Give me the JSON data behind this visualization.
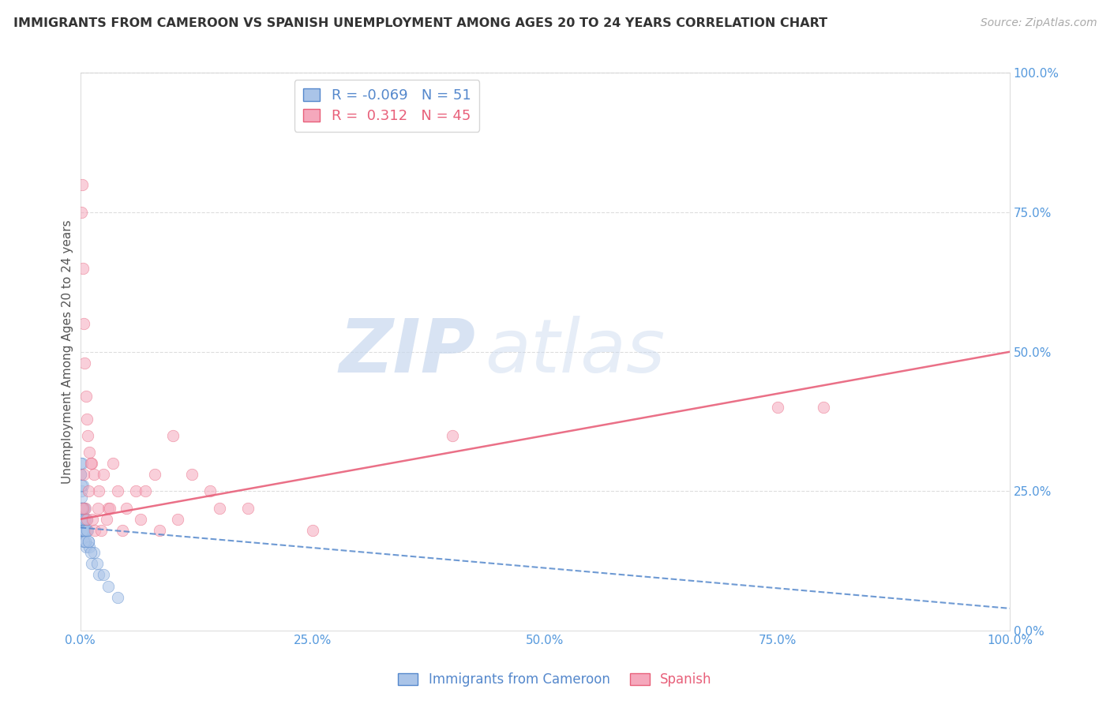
{
  "title": "IMMIGRANTS FROM CAMEROON VS SPANISH UNEMPLOYMENT AMONG AGES 20 TO 24 YEARS CORRELATION CHART",
  "source": "Source: ZipAtlas.com",
  "ylabel": "Unemployment Among Ages 20 to 24 years",
  "legend_labels": [
    "Immigrants from Cameroon",
    "Spanish"
  ],
  "legend_r": [
    -0.069,
    0.312
  ],
  "legend_n": [
    51,
    45
  ],
  "blue_color": "#aac4e8",
  "pink_color": "#f5a8bc",
  "trend_blue_color": "#5588cc",
  "trend_pink_color": "#e8607a",
  "axis_label_color": "#5599dd",
  "watermark_zip": "ZIP",
  "watermark_atlas": "atlas",
  "blue_x": [
    0.05,
    0.08,
    0.1,
    0.12,
    0.15,
    0.18,
    0.2,
    0.22,
    0.25,
    0.28,
    0.3,
    0.32,
    0.35,
    0.38,
    0.4,
    0.42,
    0.45,
    0.48,
    0.5,
    0.55,
    0.6,
    0.65,
    0.7,
    0.8,
    0.9,
    1.0,
    1.2,
    1.5,
    2.0,
    3.0,
    0.06,
    0.07,
    0.09,
    0.11,
    0.13,
    0.16,
    0.19,
    0.23,
    0.26,
    0.33,
    0.37,
    0.44,
    0.52,
    0.58,
    0.75,
    0.85,
    1.1,
    1.8,
    2.5,
    4.0,
    0.14
  ],
  "blue_y": [
    28,
    20,
    18,
    22,
    25,
    30,
    18,
    22,
    20,
    26,
    18,
    20,
    22,
    18,
    16,
    20,
    18,
    22,
    20,
    18,
    15,
    18,
    20,
    18,
    16,
    15,
    12,
    14,
    10,
    8,
    30,
    28,
    26,
    24,
    22,
    20,
    18,
    22,
    20,
    18,
    16,
    18,
    20,
    16,
    18,
    16,
    14,
    12,
    10,
    6,
    22
  ],
  "pink_x": [
    0.1,
    0.2,
    0.3,
    0.4,
    0.5,
    0.6,
    0.7,
    0.8,
    1.0,
    1.2,
    1.5,
    2.0,
    2.5,
    3.0,
    3.5,
    4.0,
    5.0,
    6.0,
    7.0,
    8.0,
    10.0,
    12.0,
    15.0,
    0.35,
    0.55,
    0.75,
    0.9,
    1.1,
    1.3,
    1.6,
    1.9,
    2.2,
    2.8,
    3.2,
    4.5,
    6.5,
    8.5,
    10.5,
    14.0,
    18.0,
    25.0,
    40.0,
    75.0,
    80.0,
    0.25
  ],
  "pink_y": [
    75,
    80,
    65,
    55,
    48,
    42,
    38,
    35,
    32,
    30,
    28,
    25,
    28,
    22,
    30,
    25,
    22,
    25,
    25,
    28,
    35,
    28,
    22,
    28,
    22,
    20,
    25,
    30,
    20,
    18,
    22,
    18,
    20,
    22,
    18,
    20,
    18,
    20,
    25,
    22,
    18,
    35,
    40,
    40,
    22
  ],
  "xlim": [
    0,
    100
  ],
  "ylim": [
    0,
    100
  ],
  "x_ticks": [
    0,
    25,
    50,
    75,
    100
  ],
  "x_tick_labels": [
    "0.0%",
    "25.0%",
    "50.0%",
    "75.0%",
    "100.0%"
  ],
  "y_ticks_right": [
    0,
    25,
    50,
    75,
    100
  ],
  "y_tick_labels_right": [
    "0.0%",
    "25.0%",
    "50.0%",
    "75.0%",
    "100.0%"
  ],
  "trend_blue_start_y": 18.5,
  "trend_blue_end_y": 4.0,
  "trend_pink_start_y": 20.0,
  "trend_pink_end_y": 50.0,
  "grid_color": "#dddddd",
  "background": "#ffffff",
  "title_fontsize": 11.5,
  "source_fontsize": 10,
  "tick_fontsize": 11,
  "ylabel_fontsize": 11,
  "scatter_size": 110,
  "scatter_alpha": 0.55
}
